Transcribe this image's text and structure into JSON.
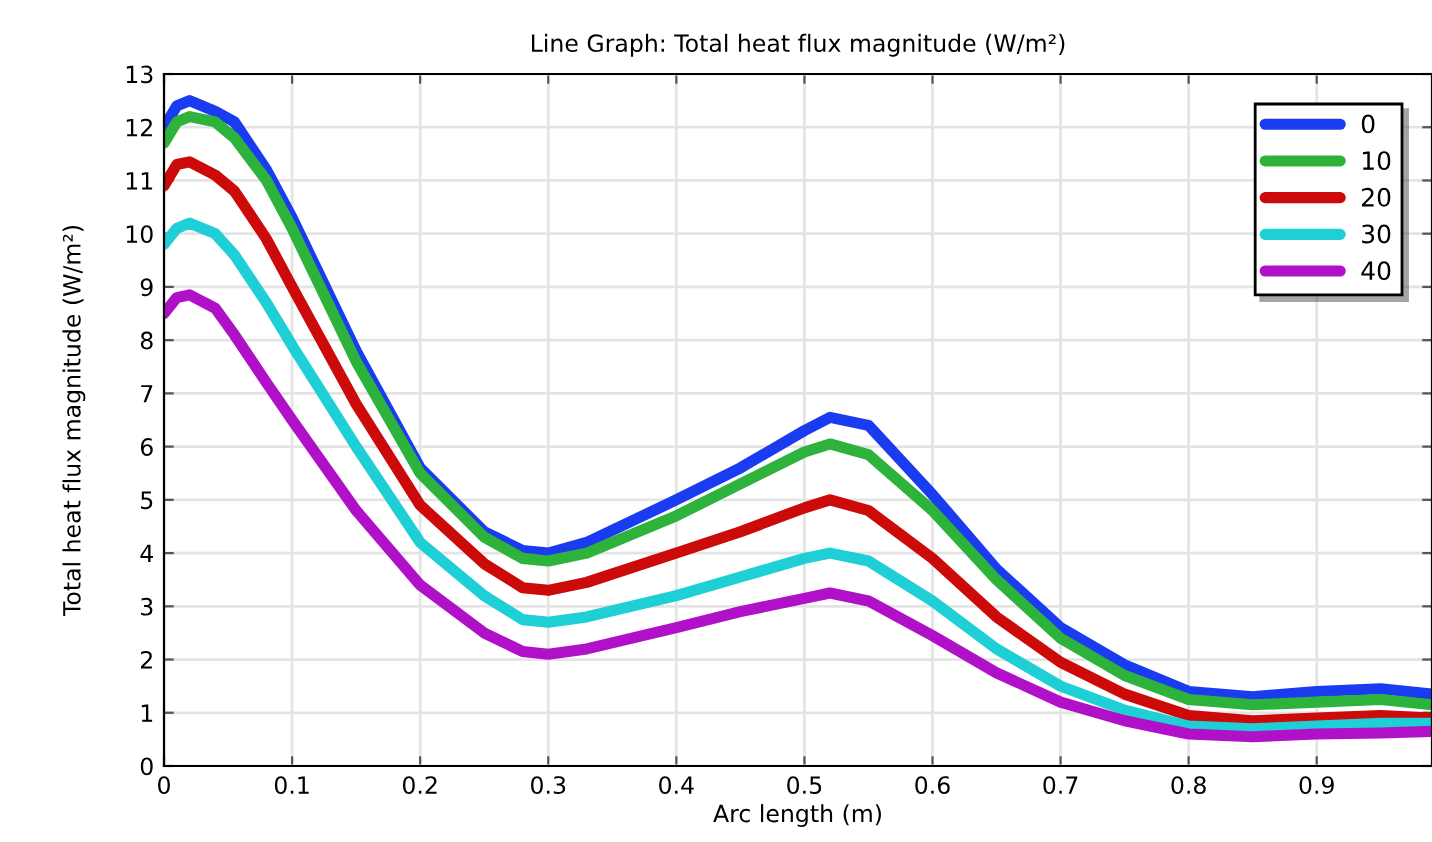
{
  "chart_data": {
    "type": "line",
    "title": "Line Graph: Total heat flux magnitude (W/m²)",
    "xlabel": "Arc length (m)",
    "ylabel": "Total heat flux magnitude (W/m²)",
    "x": [
      0,
      0.01,
      0.02,
      0.04,
      0.055,
      0.08,
      0.1,
      0.15,
      0.2,
      0.25,
      0.28,
      0.3,
      0.33,
      0.4,
      0.45,
      0.5,
      0.52,
      0.55,
      0.6,
      0.65,
      0.7,
      0.75,
      0.8,
      0.85,
      0.9,
      0.95,
      0.99
    ],
    "series": [
      {
        "name": "0",
        "color": "#1a3cf0",
        "values": [
          12.0,
          12.4,
          12.5,
          12.3,
          12.1,
          11.2,
          10.3,
          7.8,
          5.6,
          4.4,
          4.05,
          4.0,
          4.2,
          5.0,
          5.6,
          6.3,
          6.55,
          6.4,
          5.1,
          3.7,
          2.6,
          1.9,
          1.4,
          1.3,
          1.4,
          1.45,
          1.35
        ]
      },
      {
        "name": "10",
        "color": "#2db33c",
        "values": [
          11.7,
          12.1,
          12.2,
          12.1,
          11.8,
          11.0,
          10.1,
          7.6,
          5.5,
          4.3,
          3.9,
          3.85,
          4.0,
          4.7,
          5.3,
          5.9,
          6.05,
          5.85,
          4.8,
          3.5,
          2.4,
          1.7,
          1.25,
          1.15,
          1.2,
          1.25,
          1.15
        ]
      },
      {
        "name": "20",
        "color": "#cc0a0a",
        "values": [
          10.9,
          11.3,
          11.35,
          11.1,
          10.8,
          9.9,
          9.0,
          6.8,
          4.9,
          3.8,
          3.35,
          3.3,
          3.45,
          4.0,
          4.4,
          4.85,
          5.0,
          4.8,
          3.9,
          2.8,
          1.95,
          1.35,
          0.95,
          0.85,
          0.9,
          0.95,
          0.9
        ]
      },
      {
        "name": "30",
        "color": "#1ecfd6",
        "values": [
          9.8,
          10.1,
          10.2,
          10.0,
          9.6,
          8.7,
          7.9,
          6.0,
          4.2,
          3.2,
          2.75,
          2.7,
          2.8,
          3.2,
          3.55,
          3.9,
          4.0,
          3.85,
          3.1,
          2.2,
          1.5,
          1.05,
          0.75,
          0.7,
          0.75,
          0.8,
          0.8
        ]
      },
      {
        "name": "40",
        "color": "#b010c8",
        "values": [
          8.5,
          8.8,
          8.85,
          8.6,
          8.1,
          7.2,
          6.5,
          4.8,
          3.4,
          2.5,
          2.15,
          2.1,
          2.2,
          2.6,
          2.9,
          3.15,
          3.25,
          3.1,
          2.45,
          1.75,
          1.2,
          0.85,
          0.6,
          0.55,
          0.6,
          0.62,
          0.65
        ]
      }
    ],
    "xlim": [
      0,
      0.99
    ],
    "xticks": [
      0,
      0.1,
      0.2,
      0.3,
      0.4,
      0.5,
      0.6,
      0.7,
      0.8,
      0.9
    ],
    "ylim": [
      0,
      13
    ],
    "yticks": [
      0,
      1,
      2,
      3,
      4,
      5,
      6,
      7,
      8,
      9,
      10,
      11,
      12,
      13
    ],
    "grid": true,
    "legend": "top right",
    "line_style": "solid"
  }
}
